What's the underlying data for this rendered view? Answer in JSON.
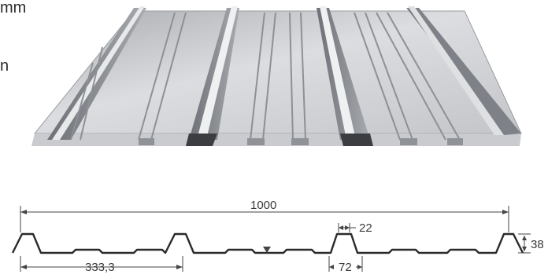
{
  "edge_text": {
    "line1": "mm",
    "line2": "n"
  },
  "dimensions": {
    "overall_width": "1000",
    "rib_top_width": "22",
    "rib_height": "38",
    "rib_pitch": "333,3",
    "rib_base_width": "72"
  },
  "colors": {
    "sheet_light": "#d9dadc",
    "sheet_mid": "#b9bbbe",
    "sheet_dark": "#7d8086",
    "line": "#2a2a2a"
  }
}
